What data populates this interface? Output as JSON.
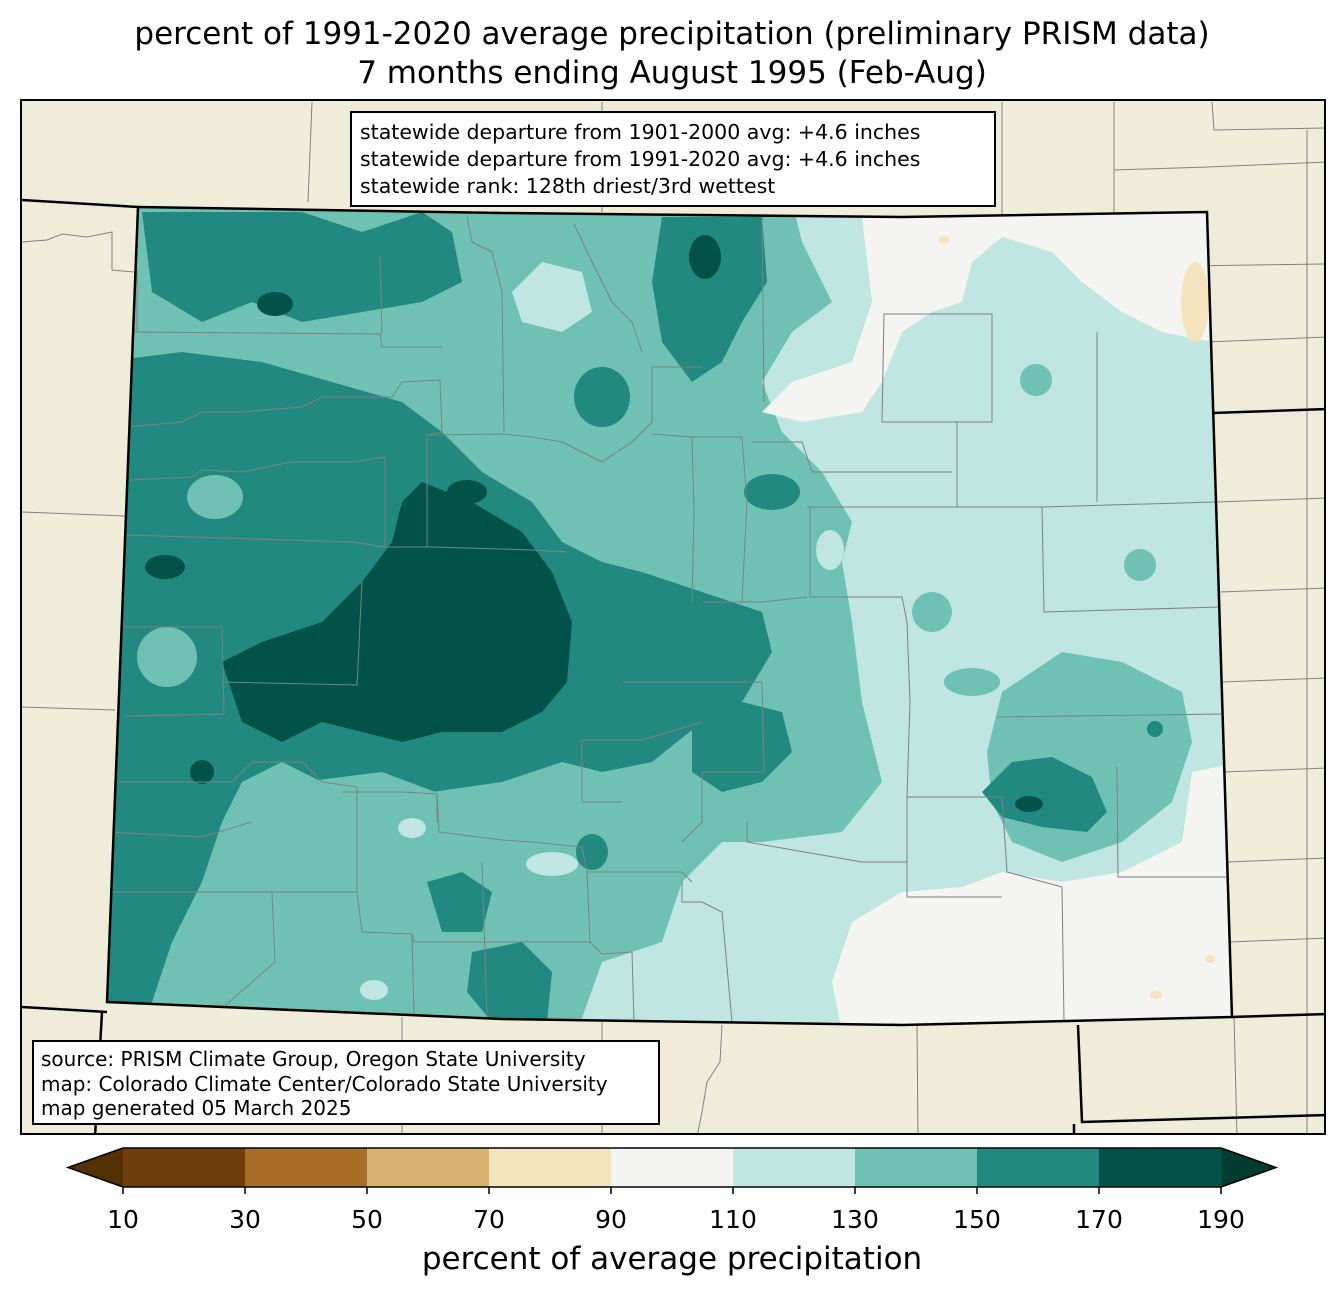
{
  "title": {
    "line1": "percent of 1991-2020 average precipitation (preliminary PRISM data)",
    "line2": "7 months ending August 1995 (Feb-Aug)"
  },
  "stats": {
    "line1": "statewide departure from 1901-2000 avg: +4.6 inches",
    "line2": "statewide departure from 1991-2020 avg: +4.6 inches",
    "line3": "statewide rank: 128th driest/3rd wettest"
  },
  "source": {
    "line1": "source: PRISM Climate Group, Oregon State University",
    "line2": "map: Colorado Climate Center/Colorado State University",
    "line3": "map generated 05 March 2025"
  },
  "colors": {
    "background": "#efedda",
    "county_lines": "#808080",
    "bins": [
      "#6f3f0b",
      "#a86d26",
      "#d9b26f",
      "#f4e4bd",
      "#f4f4f3",
      "#bfe6e1",
      "#6fc1b4",
      "#228981",
      "#01534a"
    ],
    "low_extend": "#543005",
    "high_extend": "#003c30"
  },
  "colorbar": {
    "ticks": [
      "10",
      "30",
      "50",
      "70",
      "90",
      "110",
      "130",
      "150",
      "170",
      "190"
    ],
    "label": "percent of average precipitation"
  }
}
